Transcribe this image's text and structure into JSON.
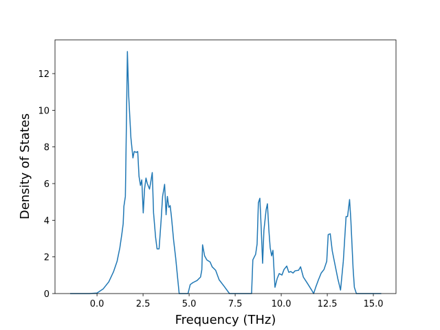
{
  "chart_data": {
    "type": "line",
    "x_label": "Frequency (THz)",
    "y_label": "Density of States",
    "color": "#1f77b4",
    "grid": false,
    "xlim": [
      -2.28,
      16.23
    ],
    "ylim": [
      0,
      13.84
    ],
    "xticks": [
      {
        "value": 0,
        "label": "0.0"
      },
      {
        "value": 2.5,
        "label": "2.5"
      },
      {
        "value": 5,
        "label": "5.0"
      },
      {
        "value": 7.5,
        "label": "7.5"
      },
      {
        "value": 10,
        "label": "10.0"
      },
      {
        "value": 12.5,
        "label": "12.5"
      },
      {
        "value": 15,
        "label": "15.0"
      }
    ],
    "yticks": [
      0,
      2,
      4,
      6,
      8,
      10,
      12
    ],
    "x": [
      -1.46,
      -0.41,
      0,
      0.34,
      0.64,
      0.9,
      1.09,
      1.24,
      1.35,
      1.42,
      1.46,
      1.54,
      1.57,
      1.65,
      1.72,
      1.84,
      1.95,
      2.02,
      2.13,
      2.21,
      2.28,
      2.36,
      2.43,
      2.51,
      2.58,
      2.66,
      2.73,
      2.85,
      2.92,
      3.0,
      3.07,
      3.18,
      3.26,
      3.37,
      3.48,
      3.56,
      3.67,
      3.75,
      3.82,
      3.9,
      3.97,
      4.04,
      4.16,
      4.27,
      4.38,
      4.46,
      4.94,
      5.06,
      5.21,
      5.43,
      5.62,
      5.69,
      5.73,
      5.84,
      5.96,
      6.14,
      6.25,
      6.44,
      6.63,
      6.89,
      7.19,
      8.39,
      8.46,
      8.61,
      8.69,
      8.76,
      8.84,
      8.91,
      8.99,
      9.06,
      9.18,
      9.25,
      9.33,
      9.4,
      9.48,
      9.55,
      9.66,
      9.78,
      9.89,
      10.04,
      10.15,
      10.3,
      10.41,
      10.52,
      10.64,
      10.75,
      10.94,
      11.05,
      11.2,
      11.42,
      11.65,
      11.76,
      11.87,
      12.02,
      12.17,
      12.32,
      12.47,
      12.55,
      12.66,
      12.77,
      12.92,
      13.07,
      13.22,
      13.37,
      13.52,
      13.6,
      13.71,
      13.78,
      13.9,
      13.97,
      14.08,
      15.43
    ],
    "values": [
      0,
      0,
      0.03,
      0.26,
      0.64,
      1.2,
      1.76,
      2.5,
      3.26,
      3.8,
      4.76,
      5.3,
      7.4,
      13.2,
      10.8,
      8.5,
      7.4,
      7.75,
      7.7,
      7.75,
      6.4,
      5.9,
      6.2,
      4.4,
      5.7,
      6.3,
      6.0,
      5.7,
      6.1,
      6.6,
      4.4,
      3.07,
      2.44,
      2.44,
      4.0,
      5.3,
      5.96,
      4.3,
      5.3,
      4.7,
      4.8,
      4.2,
      2.9,
      1.95,
      0.82,
      0,
      0,
      0.49,
      0.6,
      0.71,
      0.9,
      1.3,
      2.66,
      2.06,
      1.84,
      1.72,
      1.46,
      1.27,
      0.75,
      0.41,
      0,
      0,
      1.84,
      2.14,
      2.7,
      4.95,
      5.2,
      3.64,
      1.65,
      3.45,
      4.57,
      4.9,
      3.45,
      2.5,
      2.06,
      2.36,
      0.34,
      0.82,
      1.09,
      1.01,
      1.31,
      1.5,
      1.16,
      1.2,
      1.12,
      1.24,
      1.27,
      1.46,
      0.9,
      0.56,
      0.19,
      0,
      0.34,
      0.75,
      1.12,
      1.31,
      1.76,
      3.22,
      3.26,
      2.33,
      1.57,
      0.82,
      0.19,
      1.76,
      4.2,
      4.2,
      5.13,
      4.0,
      1.39,
      0.34,
      0,
      0
    ]
  }
}
